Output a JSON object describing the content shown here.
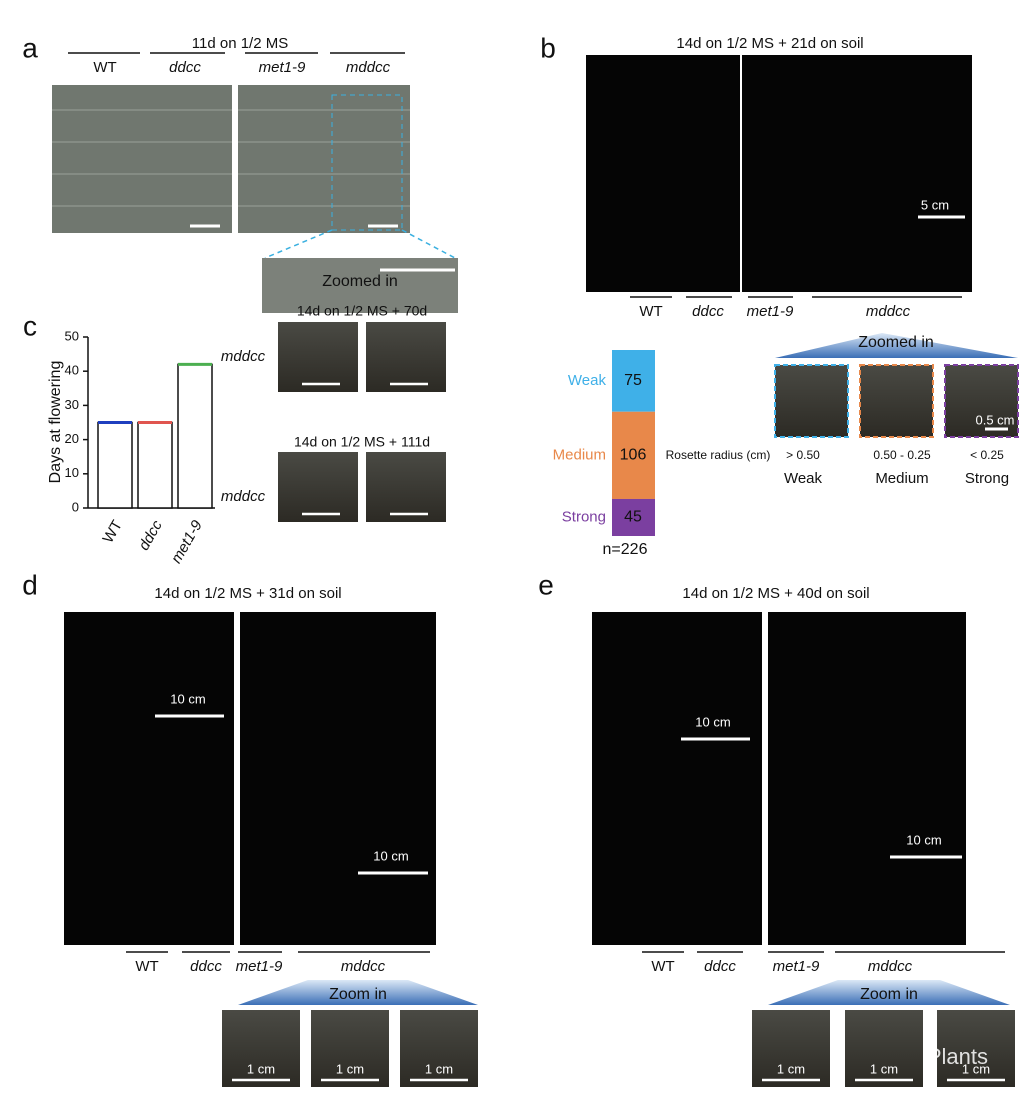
{
  "panels": {
    "a": {
      "letter": "a",
      "title": "11d on 1/2 MS",
      "genotypes": [
        "WT",
        "ddcc",
        "met1-9",
        "mddcc"
      ],
      "zoom_label": "Zoomed in"
    },
    "b": {
      "letter": "b",
      "title": "14d on 1/2 MS + 21d on soil",
      "scale": "5 cm",
      "genotypes": [
        "WT",
        "ddcc",
        "met1-9",
        "mddcc"
      ],
      "zoom_label": "Zoomed in",
      "radius_label": "Rosette radius (cm)",
      "radius_ranges": [
        "> 0.50",
        "0.50 - 0.25",
        "< 0.25"
      ],
      "classes": [
        "Weak",
        "Medium",
        "Strong"
      ],
      "zoom_scale": "0.5 cm"
    },
    "c": {
      "letter": "c",
      "photo_titles": [
        "14d on 1/2 MS + 70d",
        "14d on 1/2 MS + 111d"
      ],
      "photo_labels": [
        "mddcc",
        "mddcc"
      ]
    },
    "d": {
      "letter": "d",
      "title": "14d on 1/2 MS + 31d on soil",
      "scales": [
        "10 cm",
        "10 cm"
      ],
      "genotypes": [
        "WT",
        "ddcc",
        "met1-9",
        "mddcc"
      ],
      "zoom_label": "Zoom in",
      "zoom_scales": [
        "1 cm",
        "1 cm",
        "1 cm"
      ]
    },
    "e": {
      "letter": "e",
      "title": "14d on 1/2 MS + 40d on soil",
      "scales": [
        "10 cm",
        "10 cm"
      ],
      "genotypes": [
        "WT",
        "ddcc",
        "met1-9",
        "mddcc"
      ],
      "zoom_label": "Zoom in",
      "zoom_scales": [
        "1 cm",
        "1 cm",
        "1 cm"
      ]
    }
  },
  "watermark": "iPlants",
  "chart_data": [
    {
      "type": "bar",
      "ylabel": "Days at flowering",
      "categories": [
        "WT",
        "ddcc",
        "met1-9"
      ],
      "values": [
        25,
        25,
        42
      ],
      "colors": [
        "#1f3fbf",
        "#e0554f",
        "#4caf50"
      ],
      "ylim": [
        0,
        50
      ],
      "yticks": [
        0,
        10,
        20,
        30,
        40,
        50
      ]
    },
    {
      "type": "stacked-bar",
      "series": [
        {
          "name": "Weak",
          "color": "#3fb0e8",
          "values": [
            75
          ]
        },
        {
          "name": "Medium",
          "color": "#e8884a",
          "values": [
            106
          ]
        },
        {
          "name": "Strong",
          "color": "#7b3fa0",
          "values": [
            45
          ]
        }
      ],
      "total_label": "n=226"
    }
  ]
}
